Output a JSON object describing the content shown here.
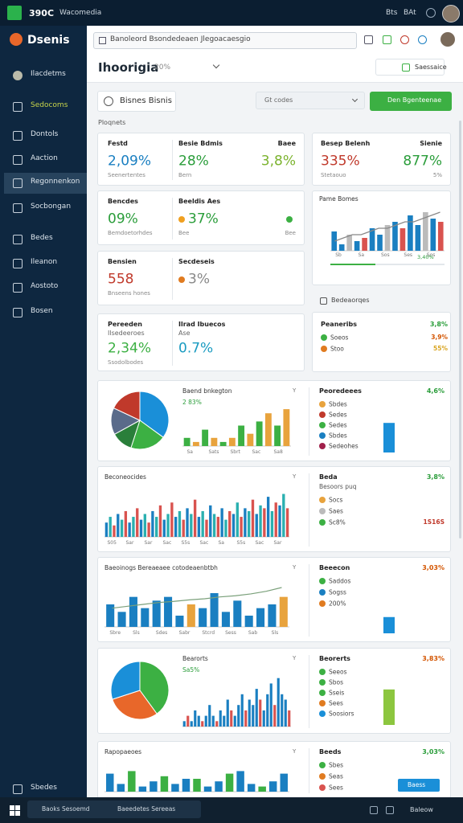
{
  "topbar": {
    "app": "390C",
    "tab": "Wacomedia",
    "right": [
      "Bts",
      "BAt"
    ]
  },
  "sidebar": {
    "brand": "Dsenis",
    "items": [
      {
        "label": "Ilacdetms"
      },
      {
        "label": "Sedocoms",
        "accent": true
      },
      {
        "label": "Dontols"
      },
      {
        "label": "Aaction"
      },
      {
        "label": "Regonnenkon",
        "active": true
      },
      {
        "label": "Socbongan"
      },
      {
        "label": "Bedes"
      },
      {
        "label": "Ileanon"
      },
      {
        "label": "Aostoto"
      },
      {
        "label": "Bosen"
      }
    ],
    "bottom": "Sbedes"
  },
  "address": "Banoleord Bsondedeaen Jlegoacaesgio",
  "header": {
    "title": "Ihoorigia",
    "badge": "20%",
    "button": "Saessaice"
  },
  "toolbar": {
    "search": "Bisnes Bisnis",
    "select": "Gt codes",
    "button": "Den Bgenteenae"
  },
  "section": "Ploqnets",
  "kpi_cards": [
    {
      "metrics": [
        {
          "label": "Festd",
          "value": "2,09%",
          "note": "Seenertentes",
          "color": "#1a7fc1"
        },
        {
          "label": "Besie Bdmis",
          "value": "28%",
          "note": "Bern",
          "color": "#2a9d3a"
        },
        {
          "label": "Baee",
          "value": "3,8%",
          "color": "#7bb32e"
        }
      ]
    },
    {
      "metrics": [
        {
          "label": "Bencdes",
          "value": "09%",
          "note": "Bemdoetorhdes",
          "color": "#2a9d3a"
        },
        {
          "label": "Beeldis Aes",
          "value": "37%",
          "note": "Bee",
          "color": "#2a9d3a",
          "dot": "#f0a020"
        },
        {
          "note": "Bee",
          "dot": "#3cb043"
        }
      ]
    },
    {
      "metrics": [
        {
          "label": "Bensien",
          "value": "558",
          "note": "Bnseens hones",
          "color": "#c0392b"
        },
        {
          "label": "Secdeseis",
          "value": "3%",
          "color": "#888888",
          "dot": "#e07b20"
        }
      ]
    },
    {
      "metrics": [
        {
          "label": "Pereeden",
          "sub": "Ilsedeeroes",
          "value": "2,34%",
          "note": "Ssodolbodes",
          "color": "#3cb043"
        },
        {
          "label": "Ilrad Ibuecos",
          "sub": "Ase",
          "value": "0.7%",
          "color": "#1a9bc1"
        }
      ]
    }
  ],
  "side_kpi": {
    "metrics": [
      {
        "label": "Besep Belenh",
        "value": "335%",
        "note": "Stetaouo",
        "color": "#c0392b"
      },
      {
        "label": "Sienie",
        "value": "877%",
        "note": "5%",
        "color": "#2a9d3a"
      }
    ]
  },
  "side_chart": {
    "title": "Pame Bomes",
    "bars": {
      "values": [
        6,
        2,
        5,
        3,
        4,
        7,
        5,
        8,
        9,
        7,
        11,
        8,
        12,
        10,
        9
      ],
      "colors": [
        "#1a7fc1",
        "#1a7fc1",
        "#bbbbbb",
        "#1a7fc1",
        "#d9534f"
      ],
      "ylim": [
        0,
        14
      ]
    },
    "line": {
      "values": [
        3,
        4,
        5,
        5,
        6,
        7,
        7,
        8,
        9,
        9,
        10,
        11,
        12
      ],
      "color": "#888888"
    },
    "x_labels": [
      "Sb",
      "Sa",
      "Sos",
      "Ses",
      "Sos"
    ],
    "progress_label": "3,40%"
  },
  "side_section": "Bedeaorqes",
  "side_legend": {
    "title": "Peaneribs",
    "value": "3,8%",
    "value_color": "#2a9d3a",
    "rows": [
      {
        "label": "Soeos",
        "dot": "#3cb043",
        "value": "3,9%",
        "value_color": "#d35400"
      },
      {
        "label": "Stoo",
        "dot": "#e07b20",
        "value": "55%",
        "value_color": "#d9a520"
      }
    ]
  },
  "panels": [
    {
      "tag": "Y",
      "pie": {
        "values": [
          35,
          20,
          12,
          15,
          18
        ],
        "colors": [
          "#1a8fd8",
          "#3cb043",
          "#2a7f3a",
          "#5a6b8a",
          "#c0392b"
        ]
      },
      "chart": {
        "title": "Baend bnkegton",
        "subtitle": "2  83%",
        "bars": {
          "values": [
            2,
            1,
            4,
            2,
            1,
            2,
            5,
            3,
            6,
            8,
            5,
            9
          ],
          "colors": [
            "#3cb043",
            "#e8a33d"
          ],
          "ylim": [
            0,
            10
          ]
        },
        "x_labels": [
          "Sa",
          "Sats",
          "Sbrt",
          "Sac",
          "Sa8"
        ]
      },
      "legend": {
        "title": "Peoredeees",
        "value": "4,6%",
        "value_color": "#2a9d3a",
        "rows": [
          {
            "label": "Sbdes",
            "dot": "#e8a33d"
          },
          {
            "label": "Sedes",
            "dot": "#c0392b"
          },
          {
            "label": "Sedes",
            "dot": "#3cb043"
          },
          {
            "label": "Sbdes",
            "dot": "#1a7fc1"
          },
          {
            "label": "Sedeohes",
            "dot": "#a0204a"
          }
        ],
        "bar": {
          "value": 40,
          "ylim": [
            0,
            50
          ],
          "color": "#1a8fd8"
        }
      }
    },
    {
      "tag": "Y",
      "chart": {
        "title": "Beconeocides",
        "bars": {
          "values": [
            5,
            7,
            4,
            8,
            6,
            9,
            5,
            7,
            10,
            6,
            8,
            5,
            9,
            7,
            11,
            6,
            8,
            12,
            7,
            9,
            6,
            10,
            8,
            13,
            7,
            9,
            6,
            11,
            8,
            7,
            10,
            6,
            9,
            8,
            12,
            7,
            10,
            9,
            13,
            8,
            11,
            10,
            14,
            9,
            12,
            11,
            15,
            10
          ],
          "colors": [
            "#1a7fc1",
            "#2ab0b0",
            "#d9534f"
          ],
          "ylim": [
            0,
            16
          ]
        },
        "x_labels": [
          "S05",
          "Sar",
          "Sar",
          "Sac",
          "S5s",
          "Sac",
          "Sa",
          "S5s",
          "Sac",
          "Sar"
        ]
      },
      "legend": {
        "title": "Beda",
        "value": "3,8%",
        "value_color": "#2a9d3a",
        "sub": "Besoors puq",
        "rows": [
          {
            "label": "Socs",
            "dot": "#e8a33d"
          },
          {
            "label": "Saes",
            "dot": "#bbbbbb"
          },
          {
            "label": "Sc8%",
            "dot": "#3cb043",
            "value": "1S16S",
            "value_color": "#c0392b"
          }
        ]
      }
    },
    {
      "tag": "Y",
      "chart": {
        "title": "Baeoinogs Bereaeaee cotodeaenbtbh",
        "bars": {
          "values": [
            6,
            4,
            8,
            5,
            7,
            8,
            3,
            6,
            5,
            9,
            4,
            7,
            3,
            5,
            6,
            8
          ],
          "colors": [
            "#1a7fc1",
            "#1a7fc1",
            "#1a7fc1",
            "#1a7fc1",
            "#1a7fc1",
            "#1a7fc1",
            "#1a7fc1",
            "#e8a33d"
          ],
          "ylim": [
            0,
            12
          ]
        },
        "line": {
          "values": [
            5,
            5.5,
            6,
            6.5,
            6.8,
            7.2,
            7.5,
            8,
            8.3,
            8.8,
            9.5,
            10.5
          ],
          "color": "#7aa07a"
        },
        "x_labels": [
          "Sbre",
          "Sls",
          "Sdes",
          "Sabr",
          "Stcrd",
          "Sess",
          "Sab",
          "Sls"
        ]
      },
      "legend": {
        "title": "Beeecon",
        "value": "3,03%",
        "value_color": "#d35400",
        "rows": [
          {
            "label": "Saddos",
            "dot": "#3cb043"
          },
          {
            "label": "Sogss",
            "dot": "#1a7fc1"
          },
          {
            "label": "200%",
            "dot": "#e07b20"
          }
        ],
        "bar": {
          "value": 22,
          "ylim": [
            0,
            50
          ],
          "color": "#1a8fd8"
        }
      }
    },
    {
      "tag": "Y",
      "pie": {
        "values": [
          40,
          30,
          30
        ],
        "colors": [
          "#3cb043",
          "#e8672a",
          "#1a8fd8"
        ]
      },
      "chart": {
        "title": "Bearorts",
        "subtitle": "Sa5%",
        "bars": {
          "values": [
            1,
            2,
            1,
            3,
            2,
            1,
            2,
            4,
            2,
            1,
            3,
            2,
            5,
            3,
            2,
            4,
            6,
            3,
            5,
            4,
            7,
            5,
            3,
            6,
            8,
            4,
            9,
            6,
            5,
            3
          ],
          "colors": [
            "#1a7fc1",
            "#d9534f",
            "#1a7fc1",
            "#1a7fc1"
          ],
          "ylim": [
            0,
            10
          ]
        },
        "x_labels": []
      },
      "legend": {
        "title": "Beorerts",
        "value": "3,83%",
        "value_color": "#d35400",
        "rows": [
          {
            "label": "Seeos",
            "dot": "#3cb043"
          },
          {
            "label": "Sbos",
            "dot": "#3cb043"
          },
          {
            "label": "Sseis",
            "dot": "#3cb043"
          },
          {
            "label": "Sees",
            "dot": "#e07b20"
          },
          {
            "label": "Soosiors",
            "dot": "#1a8fd8"
          }
        ],
        "bar": {
          "value": 48,
          "ylim": [
            0,
            50
          ],
          "color": "#8cc63f"
        }
      }
    },
    {
      "tag": "Y",
      "chart": {
        "title": "Rapopaeoes",
        "bars": {
          "values": [
            7,
            3,
            8,
            2,
            4,
            6,
            3,
            5,
            5,
            2,
            4,
            7,
            8,
            3,
            2,
            4,
            7
          ],
          "colors": [
            "#1a7fc1",
            "#1a7fc1",
            "#3cb043"
          ],
          "ylim": [
            0,
            10
          ]
        },
        "x_labels": []
      },
      "legend": {
        "title": "Beeds",
        "value": "3,03%",
        "value_color": "#2a9d3a",
        "rows": [
          {
            "label": "Sbes",
            "dot": "#3cb043"
          },
          {
            "label": "Seas",
            "dot": "#e07b20"
          },
          {
            "label": "Sees",
            "dot": "#d9534f"
          }
        ],
        "button": "Baess"
      }
    }
  ],
  "taskbar": {
    "left": [
      "Baoks Sesoemd",
      "Baeedetes Sereeas"
    ],
    "right": "Baleow"
  }
}
